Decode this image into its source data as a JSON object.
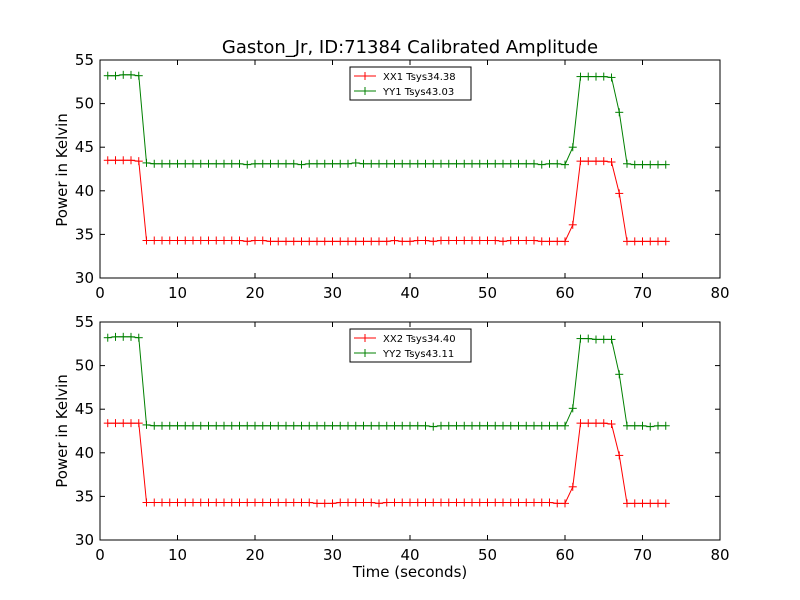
{
  "chart_data": {
    "title": "Gaston_Jr, ID:71384 Calibrated Amplitude",
    "xlabel": "Time (seconds)",
    "colors": {
      "xx": "#ff0000",
      "yy": "#008000"
    },
    "subplots": [
      {
        "type": "line",
        "ylabel": "Power in Kelvin",
        "xlim": [
          0,
          80
        ],
        "ylim": [
          30,
          55
        ],
        "xticks": [
          "0",
          "10",
          "20",
          "30",
          "40",
          "50",
          "60",
          "70",
          "80"
        ],
        "yticks": [
          "30",
          "35",
          "40",
          "45",
          "50",
          "55"
        ],
        "legend_position": "top-center",
        "x": [
          1,
          2,
          3,
          4,
          5,
          6,
          7,
          8,
          9,
          10,
          11,
          12,
          13,
          14,
          15,
          16,
          17,
          18,
          19,
          20,
          21,
          22,
          23,
          24,
          25,
          26,
          27,
          28,
          29,
          30,
          31,
          32,
          33,
          34,
          35,
          36,
          37,
          38,
          39,
          40,
          41,
          42,
          43,
          44,
          45,
          46,
          47,
          48,
          49,
          50,
          51,
          52,
          53,
          54,
          55,
          56,
          57,
          58,
          59,
          60,
          61,
          62,
          63,
          64,
          65,
          66,
          67,
          68,
          69,
          70,
          71,
          72,
          73
        ],
        "series": [
          {
            "name": "XX1 Tsys34.38",
            "color_key": "xx",
            "values": [
              43.5,
              43.5,
              43.5,
              43.5,
              43.4,
              34.3,
              34.3,
              34.3,
              34.3,
              34.3,
              34.3,
              34.3,
              34.3,
              34.3,
              34.3,
              34.3,
              34.3,
              34.3,
              34.2,
              34.3,
              34.3,
              34.2,
              34.2,
              34.2,
              34.2,
              34.2,
              34.2,
              34.2,
              34.2,
              34.2,
              34.2,
              34.2,
              34.2,
              34.2,
              34.2,
              34.2,
              34.2,
              34.3,
              34.2,
              34.2,
              34.3,
              34.3,
              34.2,
              34.3,
              34.3,
              34.3,
              34.3,
              34.3,
              34.3,
              34.3,
              34.3,
              34.2,
              34.3,
              34.3,
              34.3,
              34.3,
              34.2,
              34.2,
              34.2,
              34.2,
              36.1,
              43.4,
              43.4,
              43.4,
              43.4,
              43.3,
              39.7,
              34.2,
              34.2,
              34.2,
              34.2,
              34.2,
              34.2
            ]
          },
          {
            "name": "YY1 Tsys43.03",
            "color_key": "yy",
            "values": [
              53.2,
              53.2,
              53.3,
              53.3,
              53.2,
              43.2,
              43.1,
              43.1,
              43.1,
              43.1,
              43.1,
              43.1,
              43.1,
              43.1,
              43.1,
              43.1,
              43.1,
              43.1,
              43.0,
              43.1,
              43.1,
              43.1,
              43.1,
              43.1,
              43.1,
              43.0,
              43.1,
              43.1,
              43.1,
              43.1,
              43.1,
              43.1,
              43.2,
              43.1,
              43.1,
              43.1,
              43.1,
              43.1,
              43.1,
              43.1,
              43.1,
              43.1,
              43.1,
              43.1,
              43.1,
              43.1,
              43.1,
              43.1,
              43.1,
              43.1,
              43.1,
              43.1,
              43.1,
              43.1,
              43.1,
              43.1,
              43.0,
              43.1,
              43.1,
              43.0,
              45.0,
              53.1,
              53.1,
              53.1,
              53.1,
              53.0,
              49.0,
              43.1,
              43.0,
              43.0,
              43.0,
              43.0,
              43.0
            ]
          }
        ]
      },
      {
        "type": "line",
        "ylabel": "Power in Kelvin",
        "xlim": [
          0,
          80
        ],
        "ylim": [
          30,
          55
        ],
        "xticks": [
          "0",
          "10",
          "20",
          "30",
          "40",
          "50",
          "60",
          "70",
          "80"
        ],
        "yticks": [
          "30",
          "35",
          "40",
          "45",
          "50",
          "55"
        ],
        "legend_position": "top-center",
        "x": [
          1,
          2,
          3,
          4,
          5,
          6,
          7,
          8,
          9,
          10,
          11,
          12,
          13,
          14,
          15,
          16,
          17,
          18,
          19,
          20,
          21,
          22,
          23,
          24,
          25,
          26,
          27,
          28,
          29,
          30,
          31,
          32,
          33,
          34,
          35,
          36,
          37,
          38,
          39,
          40,
          41,
          42,
          43,
          44,
          45,
          46,
          47,
          48,
          49,
          50,
          51,
          52,
          53,
          54,
          55,
          56,
          57,
          58,
          59,
          60,
          61,
          62,
          63,
          64,
          65,
          66,
          67,
          68,
          69,
          70,
          71,
          72,
          73
        ],
        "series": [
          {
            "name": "XX2 Tsys34.40",
            "color_key": "xx",
            "values": [
              43.4,
              43.4,
              43.4,
              43.4,
              43.4,
              34.3,
              34.3,
              34.3,
              34.3,
              34.3,
              34.3,
              34.3,
              34.3,
              34.3,
              34.3,
              34.3,
              34.3,
              34.3,
              34.3,
              34.3,
              34.3,
              34.3,
              34.3,
              34.3,
              34.3,
              34.3,
              34.3,
              34.2,
              34.2,
              34.2,
              34.3,
              34.3,
              34.3,
              34.3,
              34.3,
              34.2,
              34.3,
              34.3,
              34.3,
              34.3,
              34.3,
              34.3,
              34.3,
              34.3,
              34.3,
              34.3,
              34.3,
              34.3,
              34.3,
              34.3,
              34.3,
              34.3,
              34.3,
              34.3,
              34.3,
              34.3,
              34.3,
              34.3,
              34.2,
              34.2,
              36.1,
              43.4,
              43.4,
              43.4,
              43.4,
              43.3,
              39.7,
              34.2,
              34.2,
              34.2,
              34.2,
              34.2,
              34.2
            ]
          },
          {
            "name": "YY2 Tsys43.11",
            "color_key": "yy",
            "values": [
              53.2,
              53.3,
              53.3,
              53.3,
              53.2,
              43.2,
              43.1,
              43.1,
              43.1,
              43.1,
              43.1,
              43.1,
              43.1,
              43.1,
              43.1,
              43.1,
              43.1,
              43.1,
              43.1,
              43.1,
              43.1,
              43.1,
              43.1,
              43.1,
              43.1,
              43.1,
              43.1,
              43.1,
              43.1,
              43.1,
              43.1,
              43.1,
              43.1,
              43.1,
              43.1,
              43.1,
              43.1,
              43.1,
              43.1,
              43.1,
              43.1,
              43.1,
              43.0,
              43.1,
              43.1,
              43.1,
              43.1,
              43.1,
              43.1,
              43.1,
              43.1,
              43.1,
              43.1,
              43.1,
              43.1,
              43.1,
              43.1,
              43.1,
              43.1,
              43.1,
              45.1,
              53.1,
              53.1,
              53.0,
              53.0,
              53.0,
              49.0,
              43.1,
              43.1,
              43.1,
              43.0,
              43.1,
              43.1
            ]
          }
        ]
      }
    ]
  }
}
